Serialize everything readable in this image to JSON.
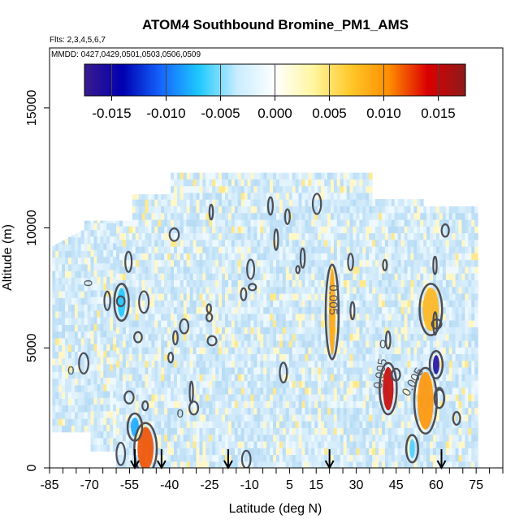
{
  "chart_data": {
    "type": "heatmap",
    "title": "ATOM4 Southbound Bromine_PM1_AMS",
    "flights_label": "Flts: 2,3,4,5,6,7",
    "dates_label": "MMDD: 0427,0429,0501,0503,0506,0509",
    "xlabel": "Latitude (deg N)",
    "ylabel": "Altitude (m)",
    "xlim": [
      -85,
      85
    ],
    "ylim": [
      0,
      17500
    ],
    "x_ticks": [
      -85,
      -70,
      -55,
      -40,
      -25,
      -10,
      5,
      15,
      30,
      45,
      60,
      75
    ],
    "x_minor_step": 5,
    "y_ticks": [
      0,
      5000,
      10000,
      15000
    ],
    "colorbar": {
      "range": [
        -0.0175,
        0.0175
      ],
      "ticks": [
        -0.015,
        -0.01,
        -0.005,
        0.0,
        0.005,
        0.01,
        0.015
      ],
      "tick_labels": [
        "-0.015",
        "-0.010",
        "-0.005",
        "0.000",
        "0.005",
        "0.010",
        "0.015"
      ],
      "colors": [
        "#3a1a8e",
        "#0000b0",
        "#1464ff",
        "#1ec8ff",
        "#c8ecff",
        "#ffffff",
        "#fff6a0",
        "#ffc828",
        "#ff8c00",
        "#dc0000",
        "#8c1a1a"
      ]
    },
    "contour_labels": [
      {
        "text": "0",
        "lat": -69,
        "alt": 7700,
        "rot": -90
      },
      {
        "text": "0",
        "lat": -77,
        "alt": 3900,
        "rot": 0
      },
      {
        "text": "0",
        "lat": -36,
        "alt": 2100,
        "rot": 0
      },
      {
        "text": "0.005",
        "lat": 20,
        "alt": 7000,
        "rot": 90
      },
      {
        "text": "0",
        "lat": 40,
        "alt": 5000,
        "rot": 0
      },
      {
        "text": "0.005",
        "lat": 40.5,
        "alt": 3900,
        "rot": -80
      },
      {
        "text": "0.005",
        "lat": 52.5,
        "alt": 3500,
        "rot": -60
      }
    ],
    "flight_markers_lat": [
      -53,
      -43,
      -18,
      20,
      62
    ],
    "features": [
      {
        "lat": -49,
        "alt": 800,
        "dlat": 3,
        "dalt": 900,
        "value": 0.012
      },
      {
        "lat": 42,
        "alt": 3300,
        "dlat": 2,
        "dalt": 900,
        "value": 0.015
      },
      {
        "lat": 56,
        "alt": 2800,
        "dlat": 3,
        "dalt": 1200,
        "value": 0.01
      },
      {
        "lat": 58,
        "alt": 6600,
        "dlat": 3,
        "dalt": 900,
        "value": 0.008
      },
      {
        "lat": 21,
        "alt": 6500,
        "dlat": 1.2,
        "dalt": 1800,
        "value": 0.009
      },
      {
        "lat": -58,
        "alt": 6900,
        "dlat": 1.5,
        "dalt": 600,
        "value": -0.007
      },
      {
        "lat": -53,
        "alt": 1700,
        "dlat": 1.5,
        "dalt": 400,
        "value": -0.008
      },
      {
        "lat": 60,
        "alt": 4300,
        "dlat": 1.2,
        "dalt": 400,
        "value": -0.016
      },
      {
        "lat": 51,
        "alt": 800,
        "dlat": 1,
        "dalt": 400,
        "value": -0.006
      }
    ]
  }
}
